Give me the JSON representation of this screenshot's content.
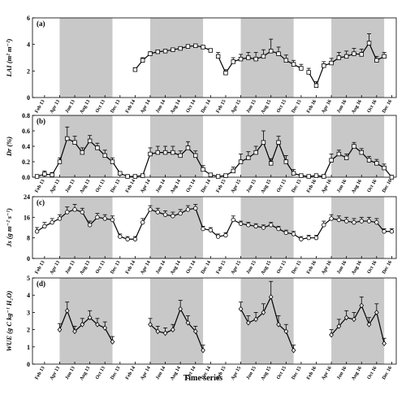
{
  "figure": {
    "xlabel": "Time series"
  },
  "x_ticks": [
    "Feb 13",
    "Apr 13",
    "Jun 13",
    "Aug 13",
    "Oct 13",
    "Dec 13",
    "Feb 14",
    "Apr 14",
    "Jun 14",
    "Aug 14",
    "Oct 14",
    "Dec 14",
    "Feb 15",
    "Apr 15",
    "Jun 15",
    "Aug 15",
    "Oct 15",
    "Dec 15",
    "Feb 16",
    "Apr 16",
    "Jun 16",
    "Aug 16",
    "Oct 16",
    "Dec 16"
  ],
  "shading": {
    "color": "#c8c8c8",
    "growing_seasons": [
      {
        "from": "Apr 13",
        "to": "Nov 13"
      },
      {
        "from": "Apr 14",
        "to": "Nov 14"
      },
      {
        "from": "Apr 15",
        "to": "Nov 15"
      },
      {
        "from": "Apr 16",
        "to": "Nov 16"
      }
    ]
  },
  "chart_data": [
    {
      "type": "line",
      "panel": "(a)",
      "ylabel": "LAI (m² m⁻²)",
      "ylim": [
        0,
        6
      ],
      "yticks": [
        0,
        2,
        4,
        6
      ],
      "marker": "square",
      "segments": [
        {
          "x": [
            "Feb 14",
            "Mar 14",
            "Apr 14",
            "May 14",
            "Jun 14",
            "Jul 14",
            "Aug 14",
            "Sep 14",
            "Oct 14",
            "Nov 14",
            "Dec 14"
          ],
          "y": [
            2.1,
            2.8,
            3.3,
            3.45,
            3.5,
            3.6,
            3.7,
            3.85,
            3.9,
            3.8,
            3.55
          ],
          "err": [
            0.15,
            0.2,
            0.15,
            0.1,
            0.1,
            0.1,
            0.1,
            0.1,
            0.1,
            0.1,
            0.1
          ]
        },
        {
          "x": [
            "Jan 15",
            "Feb 15",
            "Mar 15",
            "Apr 15",
            "May 15",
            "Jun 15",
            "Jul 15",
            "Aug 15",
            "Sep 15",
            "Oct 15",
            "Nov 15",
            "Dec 15"
          ],
          "y": [
            3.1,
            1.85,
            2.7,
            2.9,
            3.0,
            2.9,
            3.1,
            3.5,
            3.3,
            2.8,
            2.5,
            2.2
          ],
          "err": [
            0.3,
            0.25,
            0.3,
            0.35,
            0.4,
            0.5,
            0.5,
            0.9,
            0.5,
            0.4,
            0.3,
            0.3
          ]
        },
        {
          "x": [
            "Jan 16",
            "Feb 16",
            "Mar 16",
            "Apr 16",
            "May 16",
            "Jun 16",
            "Jul 16",
            "Aug 16",
            "Sep 16",
            "Oct 16",
            "Nov 16"
          ],
          "y": [
            1.9,
            0.9,
            2.4,
            2.6,
            3.0,
            3.1,
            3.3,
            3.25,
            4.1,
            2.8,
            3.1
          ],
          "err": [
            0.3,
            0.3,
            0.3,
            0.35,
            0.4,
            0.4,
            0.4,
            0.4,
            0.7,
            0.3,
            0.3
          ]
        }
      ]
    },
    {
      "type": "line",
      "panel": "(b)",
      "ylabel": "Dr (%)",
      "ylim": [
        0,
        0.8
      ],
      "yticks": [
        0.0,
        0.2,
        0.4,
        0.6,
        0.8
      ],
      "marker": "square",
      "segments": [
        {
          "x": [
            "Jan 13",
            "Feb 13",
            "Mar 13",
            "Apr 13",
            "May 13",
            "Jun 13",
            "Jul 13",
            "Aug 13",
            "Sep 13",
            "Oct 13",
            "Nov 13",
            "Dec 13",
            "Jan 14",
            "Feb 14",
            "Mar 14",
            "Apr 14",
            "May 14",
            "Jun 14",
            "Jul 14",
            "Aug 14",
            "Sep 14",
            "Oct 14",
            "Nov 14",
            "Dec 14",
            "Jan 15",
            "Feb 15",
            "Mar 15",
            "Apr 15",
            "May 15",
            "Jun 15",
            "Jul 15",
            "Aug 15",
            "Sep 15",
            "Oct 15",
            "Nov 15",
            "Dec 15",
            "Jan 16",
            "Feb 16",
            "Mar 16",
            "Apr 16",
            "May 16",
            "Jun 16",
            "Jul 16",
            "Aug 16",
            "Sep 16",
            "Oct 16",
            "Nov 16",
            "Dec 16"
          ],
          "y": [
            0.01,
            0.04,
            0.03,
            0.2,
            0.5,
            0.45,
            0.32,
            0.47,
            0.38,
            0.28,
            0.2,
            0.05,
            0.01,
            0.01,
            0.02,
            0.3,
            0.32,
            0.32,
            0.32,
            0.28,
            0.38,
            0.28,
            0.1,
            0.03,
            0.01,
            0.02,
            0.08,
            0.2,
            0.25,
            0.32,
            0.45,
            0.18,
            0.45,
            0.2,
            0.05,
            0.02,
            0.01,
            0.02,
            0.01,
            0.22,
            0.3,
            0.25,
            0.4,
            0.32,
            0.22,
            0.18,
            0.12,
            0.0
          ],
          "err": [
            0.02,
            0.04,
            0.03,
            0.05,
            0.15,
            0.08,
            0.06,
            0.07,
            0.06,
            0.07,
            0.05,
            0.02,
            0.01,
            0.01,
            0.02,
            0.08,
            0.08,
            0.08,
            0.08,
            0.06,
            0.08,
            0.06,
            0.05,
            0.02,
            0.01,
            0.02,
            0.05,
            0.1,
            0.08,
            0.08,
            0.15,
            0.06,
            0.08,
            0.08,
            0.05,
            0.02,
            0.01,
            0.02,
            0.01,
            0.08,
            0.05,
            0.05,
            0.05,
            0.05,
            0.05,
            0.05,
            0.05,
            0.01
          ]
        }
      ]
    },
    {
      "type": "line",
      "panel": "(c)",
      "ylabel": "Js (g m⁻² s⁻¹)",
      "ylim": [
        0,
        24
      ],
      "yticks": [
        0,
        8,
        16,
        24
      ],
      "marker": "circle",
      "segments": [
        {
          "x": [
            "Jan 13",
            "Feb 13",
            "Mar 13",
            "Apr 13",
            "May 13",
            "Jun 13",
            "Jul 13",
            "Aug 13",
            "Sep 13",
            "Oct 13",
            "Nov 13",
            "Dec 13",
            "Jan 14",
            "Feb 14",
            "Mar 14",
            "Apr 14",
            "May 14",
            "Jun 14",
            "Jul 14",
            "Aug 14",
            "Sep 14",
            "Oct 14",
            "Nov 14",
            "Dec 14",
            "Jan 15",
            "Feb 15",
            "Mar 15",
            "Apr 15",
            "May 15",
            "Jun 15",
            "Jul 15",
            "Aug 15",
            "Sep 15",
            "Oct 15",
            "Nov 15",
            "Dec 15",
            "Jan 16",
            "Feb 16",
            "Mar 16",
            "Apr 16",
            "May 16",
            "Jun 16",
            "Jul 16",
            "Aug 16",
            "Sep 16",
            "Oct 16",
            "Nov 16",
            "Dec 16"
          ],
          "y": [
            10.5,
            12.5,
            14,
            15.5,
            18,
            19,
            18,
            13,
            16,
            15.5,
            15,
            8.5,
            7.5,
            7.5,
            14,
            19,
            18,
            17,
            16.5,
            17.5,
            19,
            19.5,
            11.5,
            11,
            8.5,
            9,
            15,
            13.5,
            13,
            12.5,
            12,
            13,
            11.5,
            10,
            9.5,
            7.5,
            8,
            8,
            13,
            15.5,
            15,
            14.5,
            14,
            14.5,
            14.5,
            14,
            10.5,
            10.5
          ],
          "err": [
            1.5,
            1.5,
            1.5,
            1.5,
            2,
            2,
            1.5,
            1.5,
            1.5,
            1.5,
            1.5,
            1,
            1,
            1,
            1.5,
            1.5,
            1.5,
            1.5,
            1.5,
            1.5,
            1.5,
            1.5,
            1,
            1,
            1,
            1,
            1.5,
            1,
            1,
            1,
            1,
            1,
            1,
            1,
            1,
            1,
            1,
            1,
            1.5,
            1.5,
            1.5,
            1.5,
            1.5,
            1.5,
            1.5,
            1.5,
            1,
            1
          ]
        }
      ]
    },
    {
      "type": "line",
      "panel": "(d)",
      "ylabel": "WUE (g C kg⁻¹ H₂O)",
      "ylim": [
        0,
        5
      ],
      "yticks": [
        0,
        1,
        2,
        3,
        4,
        5
      ],
      "marker": "diamond",
      "segments": [
        {
          "x": [
            "Apr 13",
            "May 13",
            "Jun 13",
            "Jul 13",
            "Aug 13",
            "Sep 13",
            "Oct 13",
            "Nov 13"
          ],
          "y": [
            2.0,
            3.1,
            1.9,
            2.3,
            2.7,
            2.3,
            2.1,
            1.3
          ],
          "err": [
            0.35,
            0.5,
            0.3,
            0.35,
            0.4,
            0.35,
            0.35,
            0.3
          ]
        },
        {
          "x": [
            "Apr 14",
            "May 14",
            "Jun 14",
            "Jul 14",
            "Aug 14",
            "Sep 14",
            "Oct 14",
            "Nov 14"
          ],
          "y": [
            2.3,
            1.9,
            1.8,
            2.0,
            3.2,
            2.4,
            1.9,
            0.8
          ],
          "err": [
            0.35,
            0.3,
            0.3,
            0.3,
            0.5,
            0.4,
            0.3,
            0.3
          ]
        },
        {
          "x": [
            "Apr 15",
            "May 15",
            "Jun 15",
            "Jul 15",
            "Aug 15",
            "Sep 15",
            "Oct 15",
            "Nov 15"
          ],
          "y": [
            3.2,
            2.4,
            2.6,
            3.0,
            3.9,
            2.3,
            1.9,
            0.8
          ],
          "err": [
            0.4,
            0.4,
            0.4,
            0.5,
            0.9,
            0.5,
            0.4,
            0.3
          ]
        },
        {
          "x": [
            "Apr 16",
            "May 16",
            "Jun 16",
            "Jul 16",
            "Aug 16",
            "Sep 16",
            "Oct 16",
            "Nov 16"
          ],
          "y": [
            1.7,
            2.2,
            2.7,
            2.6,
            3.4,
            2.3,
            3.0,
            1.2
          ],
          "err": [
            0.3,
            0.4,
            0.4,
            0.4,
            0.5,
            0.4,
            0.5,
            0.3
          ]
        }
      ]
    }
  ]
}
